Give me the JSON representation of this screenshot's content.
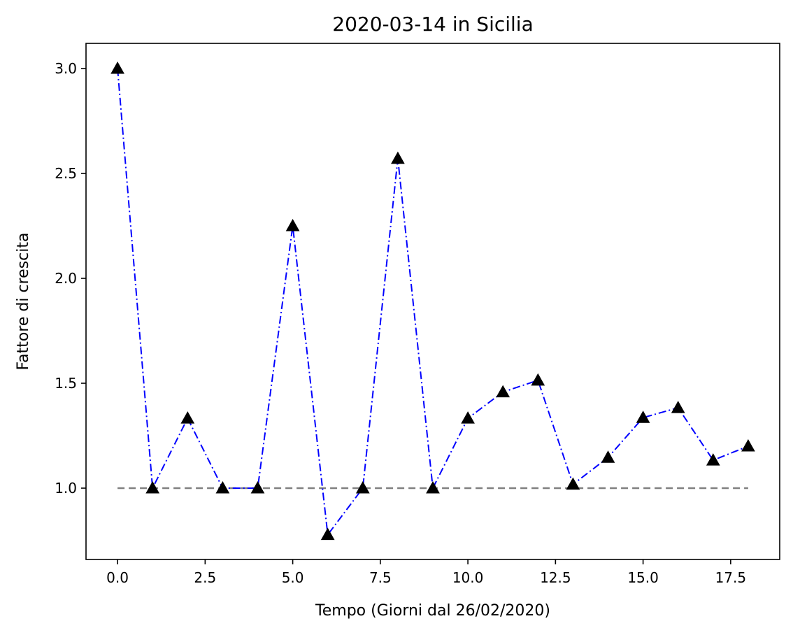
{
  "chart_data": {
    "type": "line",
    "title": "2020-03-14 in Sicilia",
    "xlabel": "Tempo (Giorni dal 26/02/2020)",
    "ylabel": "Fattore di crescita",
    "xlim": [
      -0.9,
      18.9
    ],
    "ylim": [
      0.66,
      3.12
    ],
    "xticks": [
      0.0,
      2.5,
      5.0,
      7.5,
      10.0,
      12.5,
      15.0,
      17.5
    ],
    "xtick_labels": [
      "0.0",
      "2.5",
      "5.0",
      "7.5",
      "10.0",
      "12.5",
      "15.0",
      "17.5"
    ],
    "yticks": [
      1.0,
      1.5,
      2.0,
      2.5,
      3.0
    ],
    "ytick_labels": [
      "1.0",
      "1.5",
      "2.0",
      "2.5",
      "3.0"
    ],
    "grid": false,
    "series": [
      {
        "style": "dash-dot",
        "color": "#0000ff",
        "marker": "triangle-up",
        "marker_color": "#000000",
        "x": [
          0,
          1,
          2,
          3,
          4,
          5,
          6,
          7,
          8,
          9,
          10,
          11,
          12,
          13,
          14,
          15,
          16,
          17,
          18
        ],
        "values": [
          3.0,
          1.0,
          1.333,
          1.0,
          1.0,
          2.25,
          0.778,
          1.0,
          2.571,
          1.0,
          1.333,
          1.458,
          1.514,
          1.018,
          1.146,
          1.336,
          1.383,
          1.133,
          1.2
        ]
      },
      {
        "style": "dashed",
        "color": "#808080",
        "x": [
          0,
          18
        ],
        "values": [
          1.0,
          1.0
        ]
      }
    ]
  }
}
